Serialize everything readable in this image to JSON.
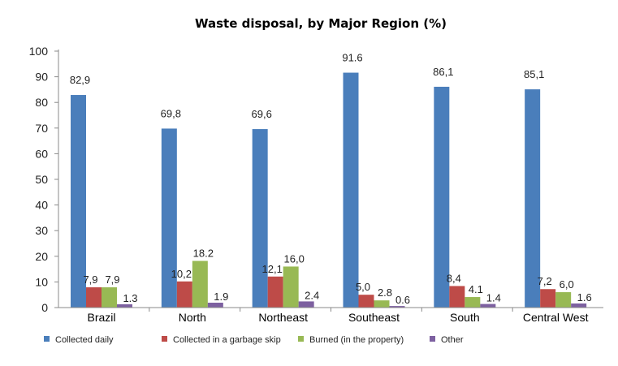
{
  "chart_data": {
    "type": "bar",
    "title": "Waste disposal, by Major Region (%)",
    "xlabel": "",
    "ylabel": "",
    "ylim": [
      0,
      100
    ],
    "yticks": [
      0,
      10,
      20,
      30,
      40,
      50,
      60,
      70,
      80,
      90,
      100
    ],
    "grid": false,
    "legend_position": "bottom",
    "categories": [
      "Brazil",
      "North",
      "Northeast",
      "Southeast",
      "South",
      "Central West"
    ],
    "series": [
      {
        "name": "Collected daily",
        "color": "#4a7ebb",
        "values": [
          82.9,
          69.8,
          69.6,
          91.6,
          86.1,
          85.1
        ],
        "labels": [
          "82,9",
          "69,8",
          "69,6",
          "91.6",
          "86,1",
          "85,1"
        ]
      },
      {
        "name": "Collected in a garbage skip",
        "color": "#be4b48",
        "values": [
          7.9,
          10.2,
          12.1,
          5.0,
          8.4,
          7.2
        ],
        "labels": [
          "7,9",
          "10,2",
          "12,1",
          "5,0",
          "8,4",
          "7,2"
        ]
      },
      {
        "name": "Burned (in the property)",
        "color": "#98b954",
        "values": [
          7.9,
          18.2,
          16.0,
          2.8,
          4.1,
          6.0
        ],
        "labels": [
          "7,9",
          "18.2",
          "16,0",
          "2.8",
          "4.1",
          "6,0"
        ]
      },
      {
        "name": "Other",
        "color": "#7d60a0",
        "values": [
          1.3,
          1.9,
          2.4,
          0.6,
          1.4,
          1.6
        ],
        "labels": [
          "1.3",
          "1.9",
          "2.4",
          "0.6",
          "1.4",
          "1.6"
        ]
      }
    ]
  }
}
